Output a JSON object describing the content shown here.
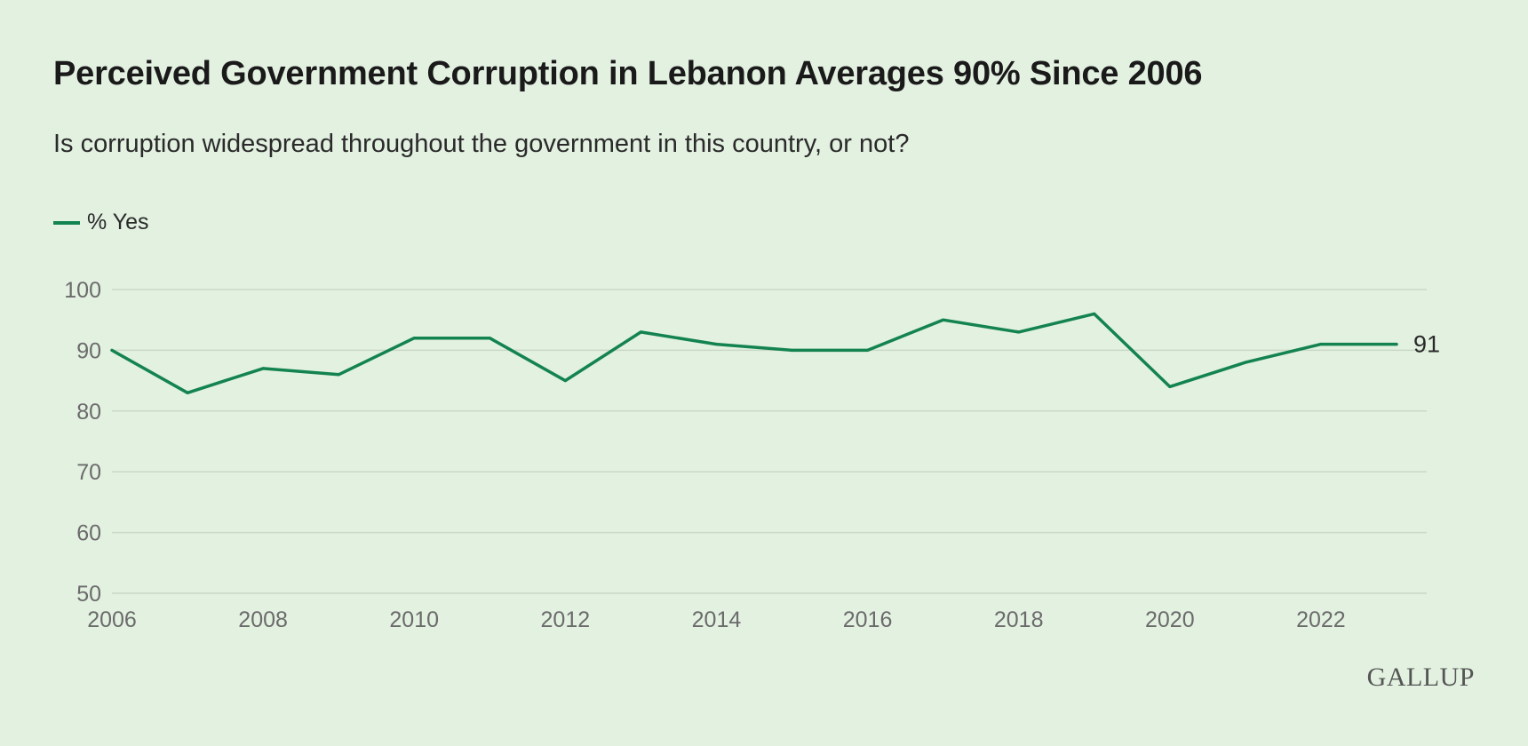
{
  "header": {
    "title": "Perceived Government Corruption in Lebanon Averages 90% Since 2006",
    "subtitle": "Is corruption widespread throughout the government in this country, or not?"
  },
  "legend": {
    "label": "% Yes"
  },
  "brand": {
    "logo_text": "GALLUP"
  },
  "colors": {
    "background": "#e3f1e1",
    "line": "#13834f",
    "grid": "#c9d9c6",
    "tick": "#6b6b6b"
  },
  "chart_data": {
    "type": "line",
    "title": "Perceived Government Corruption in Lebanon Averages 90% Since 2006",
    "subtitle": "Is corruption widespread throughout the government in this country, or not?",
    "xlabel": "",
    "ylabel": "",
    "x": [
      2006,
      2007,
      2008,
      2009,
      2010,
      2011,
      2012,
      2013,
      2014,
      2015,
      2016,
      2017,
      2018,
      2019,
      2020,
      2021,
      2022,
      2023
    ],
    "series": [
      {
        "name": "% Yes",
        "values": [
          90,
          83,
          87,
          86,
          92,
          92,
          85,
          93,
          91,
          90,
          90,
          95,
          93,
          96,
          84,
          88,
          91,
          91
        ]
      }
    ],
    "xlim": [
      2006,
      2023.4
    ],
    "ylim": [
      50,
      100
    ],
    "y_ticks": [
      50,
      60,
      70,
      80,
      90,
      100
    ],
    "x_ticks": [
      2006,
      2008,
      2010,
      2012,
      2014,
      2016,
      2018,
      2020,
      2022
    ],
    "end_label": "91",
    "grid": true,
    "legend_position": "top-left"
  }
}
